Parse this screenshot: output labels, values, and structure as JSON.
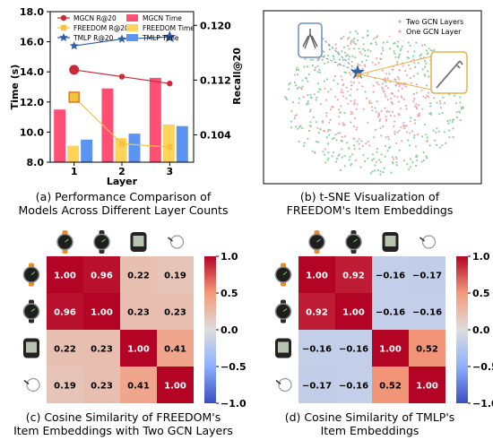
{
  "captions": {
    "a": [
      "(a) Performance Comparison of",
      "Models Across Different Layer Counts"
    ],
    "b": [
      "(b) t-SNE Visualization of",
      "FREEDOM's Item Embeddings"
    ],
    "c": [
      "(c) Cosine Similarity of FREEDOM's",
      "Item Embeddings with Two GCN Layers"
    ],
    "d": [
      "(d) Cosine Similarity of TMLP's",
      "Item Embeddings"
    ]
  },
  "colors": {
    "mgcn": "#cc2a36",
    "freedom": "#f5c242",
    "tmlp": "#2f5ea8",
    "mgcn_bar": "#ff4f72",
    "freedom_bar": "#ffd35a",
    "tmlp_bar": "#5c94f2",
    "tsne_two": "#8fd0a0",
    "tsne_one": "#f2a7b0",
    "highlight": "#e8b04a",
    "inset_left": "#6b8fc4"
  },
  "icons": [
    "watch-orange-strap-icon",
    "watch-black-strap-icon",
    "bike-computer-icon",
    "speed-sensor-icon"
  ],
  "chart_data": [
    {
      "type": "bar",
      "categories": [
        "1",
        "2",
        "3"
      ],
      "xlabel": "Layer",
      "ylabel": "Time (s)",
      "y2label": "Recall@20",
      "ylim": [
        8.0,
        18.0
      ],
      "yticks": [
        "8.0",
        "10.0",
        "12.0",
        "14.0",
        "16.0",
        "18.0"
      ],
      "y2lim": [
        0.1,
        0.122
      ],
      "y2ticks": [
        "0.104",
        "0.112",
        "0.120"
      ],
      "legend": [
        "MGCN R@20",
        "FREEDOM R@20",
        "TMLP R@20",
        "MGCN Time",
        "FREEDOM Time",
        "TMLP Time"
      ],
      "legend_position": "top",
      "bar_series": [
        {
          "name": "MGCN Time",
          "values": [
            11.5,
            12.9,
            13.6
          ]
        },
        {
          "name": "FREEDOM Time",
          "values": [
            9.1,
            9.6,
            10.5
          ]
        },
        {
          "name": "TMLP Time",
          "values": [
            9.5,
            9.9,
            10.4
          ]
        }
      ],
      "line_series": [
        {
          "name": "MGCN R@20",
          "values": [
            0.1135,
            0.1125,
            0.1115
          ]
        },
        {
          "name": "FREEDOM R@20",
          "values": [
            0.1095,
            0.1027,
            0.1022
          ]
        },
        {
          "name": "TMLP R@20",
          "values": [
            0.117,
            0.118,
            0.1183
          ]
        }
      ]
    },
    {
      "type": "scatter",
      "title": "",
      "legend": [
        "Two GCN Layers",
        "One GCN Layer"
      ],
      "legend_position": "top-right"
    },
    {
      "type": "heatmap",
      "vmin": -1.0,
      "vmax": 1.0,
      "colorbar_ticks": [
        "1.0",
        "0.5",
        "0.0",
        "−0.5",
        "−1.0"
      ],
      "values": [
        [
          1.0,
          0.96,
          0.22,
          0.19
        ],
        [
          0.96,
          1.0,
          0.23,
          0.23
        ],
        [
          0.22,
          0.23,
          1.0,
          0.41
        ],
        [
          0.19,
          0.23,
          0.41,
          1.0
        ]
      ]
    },
    {
      "type": "heatmap",
      "vmin": -1.0,
      "vmax": 1.0,
      "colorbar_ticks": [
        "1.0",
        "0.5",
        "0.0",
        "−0.5",
        "−1.0"
      ],
      "values": [
        [
          1.0,
          0.92,
          -0.16,
          -0.17
        ],
        [
          0.92,
          1.0,
          -0.16,
          -0.16
        ],
        [
          -0.16,
          -0.16,
          1.0,
          0.52
        ],
        [
          -0.17,
          -0.16,
          0.52,
          1.0
        ]
      ]
    }
  ]
}
